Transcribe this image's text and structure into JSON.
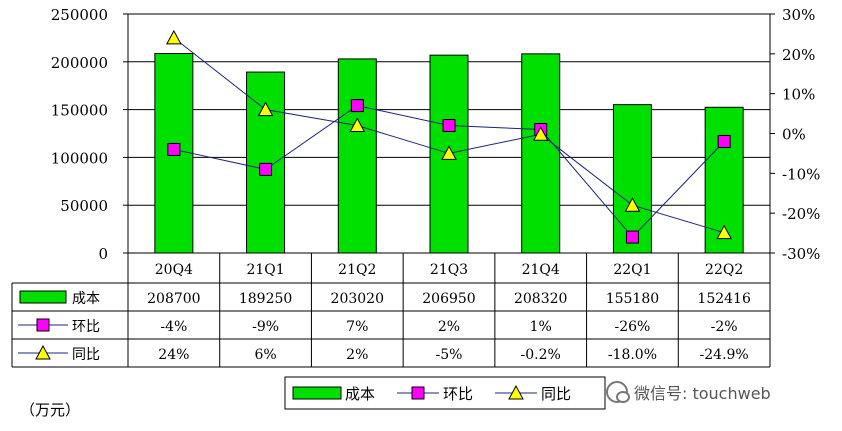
{
  "chart_data": {
    "type": "bar",
    "categories": [
      "20Q4",
      "21Q1",
      "21Q2",
      "21Q3",
      "21Q4",
      "22Q1",
      "22Q2"
    ],
    "series": [
      {
        "name": "成本",
        "type": "bar",
        "axis": "left",
        "color": "#00e000",
        "values": [
          208700,
          189250,
          203020,
          206950,
          208320,
          155180,
          152416
        ]
      },
      {
        "name": "环比",
        "type": "line",
        "axis": "right",
        "marker": "square",
        "color": "#ff00ff",
        "values": [
          -4,
          -9,
          7,
          2,
          1,
          -26,
          -2
        ]
      },
      {
        "name": "同比",
        "type": "line",
        "axis": "right",
        "marker": "triangle",
        "color": "#ffff00",
        "values": [
          24,
          6,
          2,
          -5,
          -0.2,
          -18.0,
          -24.9
        ]
      }
    ],
    "table_rows": [
      [
        "208700",
        "189250",
        "203020",
        "206950",
        "208320",
        "155180",
        "152416"
      ],
      [
        "-4%",
        "-9%",
        "7%",
        "2%",
        "1%",
        "-26%",
        "-2%"
      ],
      [
        "24%",
        "6%",
        "2%",
        "-5%",
        "-0.2%",
        "-18.0%",
        "-24.9%"
      ]
    ],
    "ylim_left": [
      0,
      250000
    ],
    "left_ticks": [
      "0",
      "50000",
      "100000",
      "150000",
      "200000",
      "250000"
    ],
    "ylim_right": [
      -30,
      30
    ],
    "right_ticks": [
      "-30%",
      "-20%",
      "-10%",
      "0%",
      "10%",
      "20%",
      "30%"
    ],
    "grid": true,
    "legend_position": "bottom"
  },
  "unit_label": "（万元）",
  "watermark_text": "微信号: touchweb"
}
